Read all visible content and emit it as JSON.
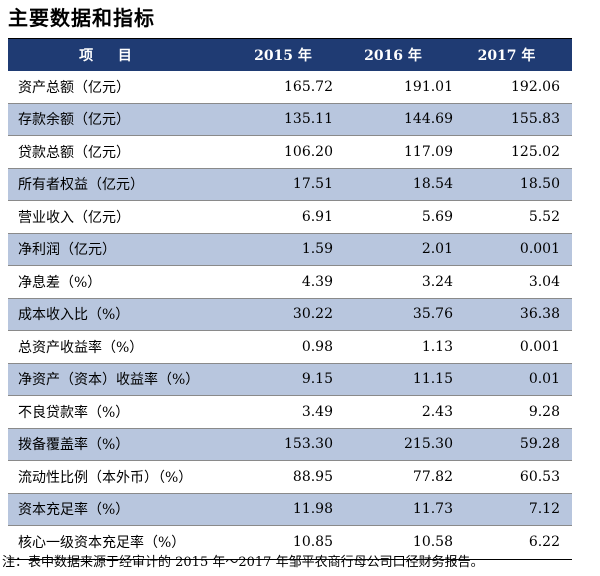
{
  "title": "主要数据和指标",
  "table": {
    "headers": [
      "项 目",
      "2015 年",
      "2016 年",
      "2017 年"
    ],
    "rows": [
      {
        "label": "资产总额（亿元）",
        "v2015": "165.72",
        "v2016": "191.01",
        "v2017": "192.06"
      },
      {
        "label": "存款余额（亿元）",
        "v2015": "135.11",
        "v2016": "144.69",
        "v2017": "155.83"
      },
      {
        "label": "贷款总额（亿元）",
        "v2015": "106.20",
        "v2016": "117.09",
        "v2017": "125.02"
      },
      {
        "label": "所有者权益（亿元）",
        "v2015": "17.51",
        "v2016": "18.54",
        "v2017": "18.50"
      },
      {
        "label": "营业收入（亿元）",
        "v2015": "6.91",
        "v2016": "5.69",
        "v2017": "5.52"
      },
      {
        "label": "净利润（亿元）",
        "v2015": "1.59",
        "v2016": "2.01",
        "v2017": "0.001"
      },
      {
        "label": "净息差（%）",
        "v2015": "4.39",
        "v2016": "3.24",
        "v2017": "3.04"
      },
      {
        "label": "成本收入比（%）",
        "v2015": "30.22",
        "v2016": "35.76",
        "v2017": "36.38"
      },
      {
        "label": "总资产收益率（%）",
        "v2015": "0.98",
        "v2016": "1.13",
        "v2017": "0.001"
      },
      {
        "label": "净资产（资本）收益率（%）",
        "v2015": "9.15",
        "v2016": "11.15",
        "v2017": "0.01"
      },
      {
        "label": "不良贷款率（%）",
        "v2015": "3.49",
        "v2016": "2.43",
        "v2017": "9.28"
      },
      {
        "label": "拨备覆盖率（%）",
        "v2015": "153.30",
        "v2016": "215.30",
        "v2017": "59.28"
      },
      {
        "label": "流动性比例（本外币）（%）",
        "v2015": "88.95",
        "v2016": "77.82",
        "v2017": "60.53"
      },
      {
        "label": "资本充足率（%）",
        "v2015": "11.98",
        "v2016": "11.73",
        "v2017": "7.12"
      },
      {
        "label": "核心一级资本充足率（%）",
        "v2015": "10.85",
        "v2016": "10.58",
        "v2017": "6.22"
      }
    ]
  },
  "note": "注：表中数据来源于经审计的 2015 年～2017 年邹平农商行母公司口径财务报告。",
  "colors": {
    "header_bg": "#1f3b73",
    "shade_bg": "#b8c6de"
  }
}
